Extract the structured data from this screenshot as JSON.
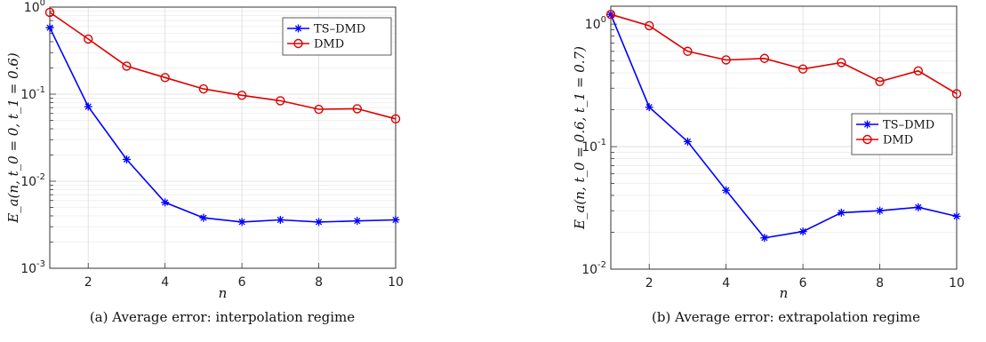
{
  "chart_data": [
    {
      "type": "line",
      "caption": "(a) Average error: interpolation regime",
      "xlabel": "n",
      "ylabel": "E_a(n, t_0 = 0, t_1 = 0.6)",
      "yscale": "log",
      "xlim": [
        1,
        10
      ],
      "ylim": [
        0.001,
        1
      ],
      "xticks": [
        "2",
        "4",
        "6",
        "8",
        "10"
      ],
      "ytick_exponents": [
        "-3",
        "-2",
        "-1",
        "0"
      ],
      "grid": true,
      "legend_position": "top-right",
      "x": [
        1,
        2,
        3,
        4,
        5,
        6,
        7,
        8,
        9,
        10
      ],
      "series": [
        {
          "name": "TS–DMD",
          "color": "#0000ff",
          "marker": "asterisk",
          "values": [
            0.58,
            0.072,
            0.0178,
            0.0057,
            0.0038,
            0.0034,
            0.0036,
            0.0034,
            0.0035,
            0.0036
          ]
        },
        {
          "name": "DMD",
          "color": "#dd0000",
          "marker": "circle",
          "values": [
            0.87,
            0.43,
            0.21,
            0.155,
            0.115,
            0.097,
            0.084,
            0.067,
            0.068,
            0.052
          ]
        }
      ]
    },
    {
      "type": "line",
      "caption": "(b) Average error: extrapolation regime",
      "xlabel": "n",
      "ylabel": "E_a(n, t_0 = 0.6, t_1 = 0.7)",
      "yscale": "log",
      "xlim": [
        1,
        10
      ],
      "ylim": [
        0.01,
        1.4
      ],
      "xticks": [
        "2",
        "4",
        "6",
        "8",
        "10"
      ],
      "ytick_exponents": [
        "-2",
        "-1",
        "0"
      ],
      "grid": true,
      "legend_position": "center-right",
      "x": [
        1,
        2,
        3,
        4,
        5,
        6,
        7,
        8,
        9,
        10
      ],
      "series": [
        {
          "name": "TS–DMD",
          "color": "#0000ff",
          "marker": "asterisk",
          "values": [
            1.2,
            0.21,
            0.11,
            0.044,
            0.018,
            0.0203,
            0.0289,
            0.03,
            0.032,
            0.027
          ]
        },
        {
          "name": "DMD",
          "color": "#dd0000",
          "marker": "circle",
          "values": [
            1.2,
            0.97,
            0.6,
            0.51,
            0.525,
            0.43,
            0.485,
            0.34,
            0.415,
            0.27
          ]
        }
      ]
    }
  ]
}
